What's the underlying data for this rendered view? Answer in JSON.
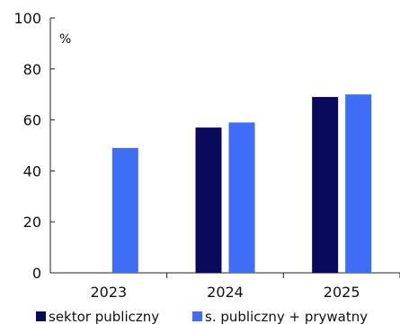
{
  "chart_data": {
    "type": "bar",
    "categories": [
      "2023",
      "2024",
      "2025"
    ],
    "series": [
      {
        "name": "sektor publiczny",
        "color": "#0a0a5c",
        "values": [
          null,
          57,
          69
        ]
      },
      {
        "name": "s. publiczny + prywatny",
        "color": "#3d6ef5",
        "values": [
          49,
          59,
          70
        ]
      }
    ],
    "ylim": [
      0,
      100
    ],
    "yticks": [
      "0",
      "20",
      "40",
      "60",
      "80",
      "100"
    ],
    "unit_label": "%",
    "grid": false,
    "legend_position": "bottom"
  }
}
